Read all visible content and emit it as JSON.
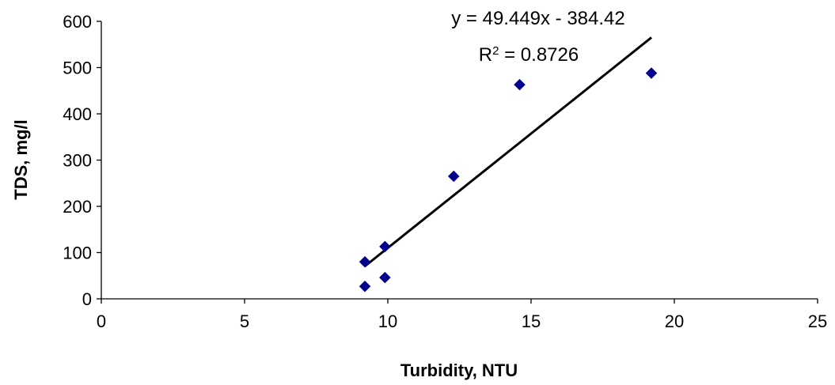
{
  "chart_data": {
    "type": "scatter",
    "xlabel": "Turbidity, NTU",
    "ylabel": "TDS, mg/l",
    "xlim": [
      0,
      25
    ],
    "ylim": [
      0,
      600
    ],
    "x_ticks": [
      0,
      5,
      10,
      15,
      20,
      25
    ],
    "y_ticks": [
      0,
      100,
      200,
      300,
      400,
      500,
      600
    ],
    "x_tick_labels": [
      "0",
      "5",
      "10",
      "15",
      "20",
      "25"
    ],
    "y_tick_labels": [
      "0",
      "100",
      "200",
      "300",
      "400",
      "500",
      "600"
    ],
    "grid": false,
    "marker": "diamond",
    "marker_color": "#00008B",
    "series": [
      {
        "points": [
          {
            "x": 9.2,
            "y": 27
          },
          {
            "x": 9.2,
            "y": 80
          },
          {
            "x": 9.9,
            "y": 46
          },
          {
            "x": 9.9,
            "y": 113
          },
          {
            "x": 12.3,
            "y": 265
          },
          {
            "x": 14.6,
            "y": 463
          },
          {
            "x": 19.2,
            "y": 488
          }
        ]
      }
    ],
    "trendline": {
      "type": "linear",
      "slope": 49.449,
      "intercept": -384.42,
      "x_range": [
        9.2,
        19.2
      ],
      "color": "#000000"
    },
    "annotations": {
      "equation": "y = 49.449x - 384.42",
      "r2_prefix": "R",
      "r2_superscript": "2",
      "r2_value": " = 0.8726"
    }
  }
}
